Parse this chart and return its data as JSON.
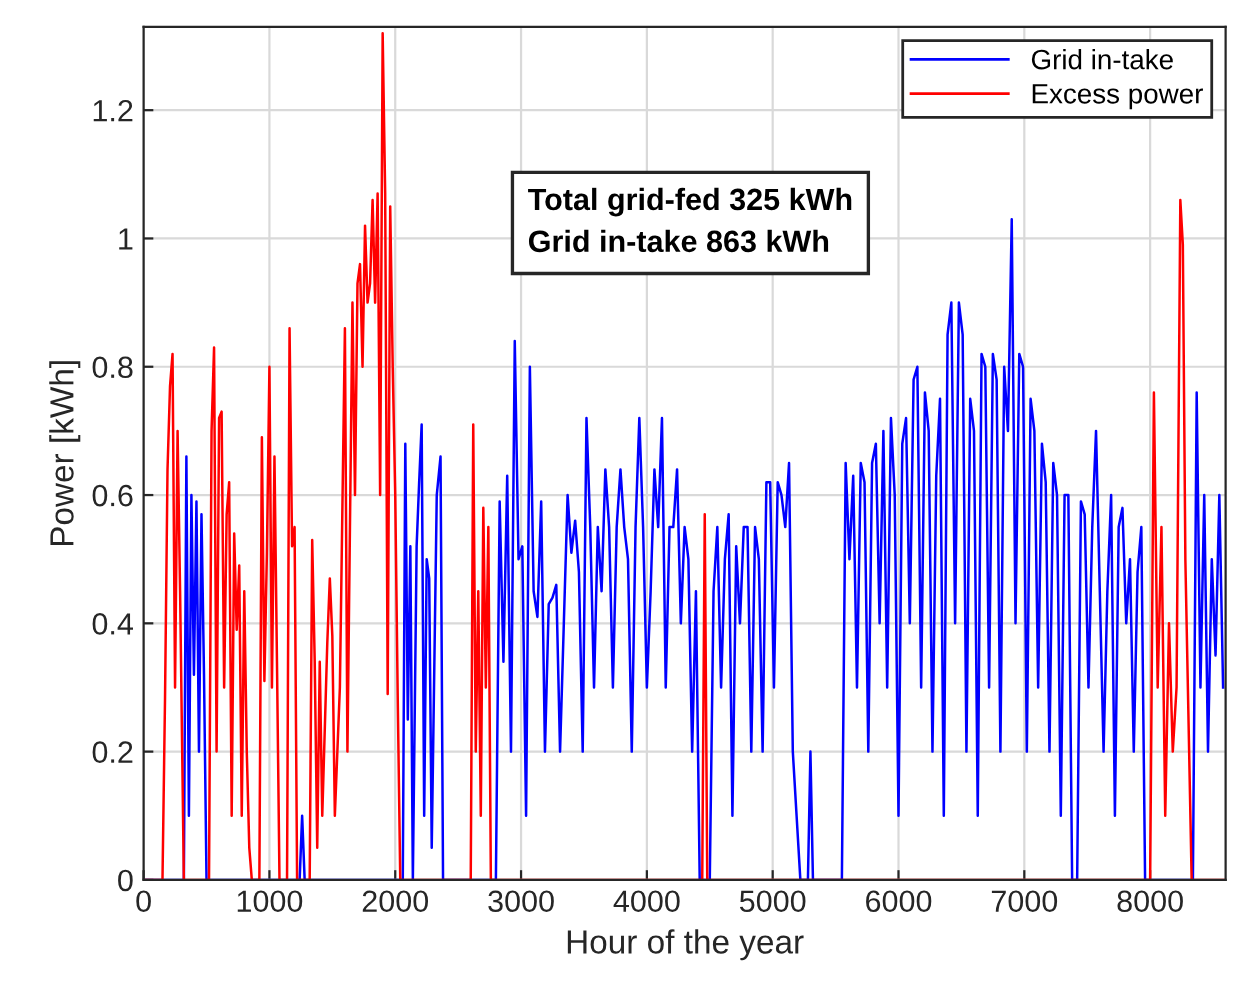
{
  "chart_data": {
    "type": "line",
    "xlabel": "Hour of the year",
    "ylabel": "Power [kWh]",
    "xlim": [
      0,
      8600
    ],
    "xticks": [
      0,
      1000,
      2000,
      3000,
      4000,
      5000,
      6000,
      7000,
      8000
    ],
    "ylim": [
      0,
      1.33
    ],
    "yticks": [
      0,
      0.2,
      0.4,
      0.6,
      0.8,
      1,
      1.2
    ],
    "grid": true,
    "legend": "top right",
    "marker": "none",
    "line_style": "solid",
    "annotations": [
      "Total grid-fed 325 kWh\nGrid in-take 863 kWh"
    ],
    "series": [
      {
        "name": "Grid in-take",
        "color": "#0000ff",
        "x": [
          0,
          320,
          340,
          360,
          380,
          400,
          420,
          440,
          460,
          480,
          500,
          1240,
          1260,
          1280,
          2060,
          2080,
          2100,
          2120,
          2140,
          2170,
          2190,
          2210,
          2230,
          2250,
          2270,
          2290,
          2330,
          2360,
          2380,
          2800,
          2830,
          2860,
          2890,
          2920,
          2950,
          2980,
          3010,
          3040,
          3070,
          3100,
          3130,
          3160,
          3190,
          3220,
          3250,
          3280,
          3310,
          3340,
          3370,
          3400,
          3430,
          3460,
          3490,
          3520,
          3550,
          3580,
          3610,
          3640,
          3670,
          3700,
          3730,
          3760,
          3790,
          3820,
          3850,
          3880,
          3910,
          3940,
          3970,
          4000,
          4030,
          4060,
          4090,
          4120,
          4150,
          4180,
          4210,
          4240,
          4270,
          4300,
          4330,
          4360,
          4390,
          4420,
          4500,
          4530,
          4560,
          4590,
          4620,
          4650,
          4680,
          4710,
          4740,
          4770,
          4800,
          4830,
          4860,
          4890,
          4920,
          4950,
          4980,
          5010,
          5040,
          5070,
          5100,
          5130,
          5160,
          5190,
          5220,
          5280,
          5300,
          5320,
          5550,
          5580,
          5610,
          5640,
          5670,
          5700,
          5730,
          5760,
          5790,
          5820,
          5850,
          5880,
          5910,
          5940,
          5970,
          6000,
          6030,
          6060,
          6090,
          6120,
          6150,
          6180,
          6210,
          6240,
          6270,
          6300,
          6330,
          6360,
          6390,
          6420,
          6450,
          6480,
          6510,
          6540,
          6570,
          6600,
          6630,
          6660,
          6690,
          6720,
          6750,
          6780,
          6810,
          6840,
          6870,
          6900,
          6930,
          6960,
          6990,
          7020,
          7050,
          7080,
          7110,
          7140,
          7170,
          7200,
          7230,
          7260,
          7290,
          7320,
          7350,
          7380,
          7420,
          7450,
          7480,
          7510,
          7540,
          7570,
          7600,
          7630,
          7660,
          7690,
          7720,
          7750,
          7780,
          7810,
          7840,
          7870,
          7900,
          7930,
          7960,
          8340,
          8370,
          8400,
          8430,
          8460,
          8490,
          8520,
          8550,
          8580
        ],
        "values": [
          0,
          0,
          0.66,
          0.1,
          0.6,
          0.32,
          0.59,
          0.2,
          0.57,
          0.32,
          0,
          0,
          0.1,
          0,
          0,
          0.68,
          0.25,
          0.52,
          0,
          0.52,
          0.62,
          0.71,
          0.1,
          0.5,
          0.47,
          0.05,
          0.6,
          0.66,
          0,
          0,
          0.59,
          0.34,
          0.63,
          0.2,
          0.84,
          0.5,
          0.52,
          0.1,
          0.8,
          0.45,
          0.41,
          0.59,
          0.2,
          0.43,
          0.44,
          0.46,
          0.2,
          0.4,
          0.6,
          0.51,
          0.56,
          0.48,
          0.2,
          0.72,
          0.55,
          0.3,
          0.55,
          0.45,
          0.64,
          0.55,
          0.3,
          0.55,
          0.64,
          0.55,
          0.5,
          0.2,
          0.55,
          0.72,
          0.55,
          0.3,
          0.45,
          0.64,
          0.55,
          0.72,
          0.3,
          0.55,
          0.55,
          0.64,
          0.4,
          0.55,
          0.5,
          0.2,
          0.45,
          0,
          0,
          0.45,
          0.55,
          0.3,
          0.5,
          0.57,
          0.1,
          0.52,
          0.4,
          0.55,
          0.55,
          0.2,
          0.55,
          0.5,
          0.2,
          0.62,
          0.62,
          0.3,
          0.62,
          0.6,
          0.55,
          0.65,
          0.2,
          0.1,
          0,
          0,
          0.2,
          0,
          0,
          0.65,
          0.5,
          0.63,
          0.3,
          0.65,
          0.62,
          0.2,
          0.65,
          0.68,
          0.4,
          0.7,
          0.3,
          0.72,
          0.6,
          0.1,
          0.68,
          0.72,
          0.4,
          0.78,
          0.8,
          0.3,
          0.76,
          0.7,
          0.2,
          0.63,
          0.75,
          0.1,
          0.85,
          0.9,
          0.4,
          0.9,
          0.85,
          0.2,
          0.75,
          0.7,
          0.1,
          0.82,
          0.8,
          0.3,
          0.82,
          0.78,
          0.2,
          0.8,
          0.7,
          1.03,
          0.4,
          0.82,
          0.8,
          0.2,
          0.75,
          0.7,
          0.3,
          0.68,
          0.62,
          0.2,
          0.65,
          0.6,
          0.1,
          0.6,
          0.6,
          0,
          0,
          0.59,
          0.57,
          0.3,
          0.55,
          0.7,
          0.45,
          0.2,
          0.45,
          0.6,
          0.1,
          0.55,
          0.58,
          0.4,
          0.5,
          0.2,
          0.48,
          0.55,
          0,
          0,
          0.76,
          0.3,
          0.6,
          0.2,
          0.5,
          0.35,
          0.6,
          0.3
        ]
      },
      {
        "name": "Excess power",
        "color": "#ff0000",
        "x": [
          0,
          150,
          170,
          190,
          210,
          230,
          250,
          270,
          290,
          320,
          520,
          540,
          560,
          580,
          600,
          620,
          640,
          660,
          680,
          700,
          720,
          740,
          760,
          780,
          800,
          820,
          840,
          860,
          920,
          940,
          960,
          980,
          1000,
          1020,
          1040,
          1060,
          1080,
          1140,
          1160,
          1180,
          1200,
          1220,
          1320,
          1340,
          1360,
          1380,
          1400,
          1420,
          1460,
          1480,
          1500,
          1520,
          1560,
          1600,
          1620,
          1660,
          1680,
          1700,
          1720,
          1740,
          1760,
          1780,
          1800,
          1820,
          1840,
          1860,
          1880,
          1900,
          1920,
          1940,
          1960,
          1980,
          2000,
          2020,
          2040,
          2600,
          2620,
          2640,
          2660,
          2680,
          2700,
          2720,
          2740,
          2760,
          4440,
          4460,
          4480,
          8000,
          8030,
          8060,
          8090,
          8120,
          8150,
          8180,
          8210,
          8240,
          8260,
          8280,
          8300,
          8330,
          8600
        ],
        "values": [
          0,
          0,
          0.28,
          0.64,
          0.77,
          0.82,
          0.3,
          0.7,
          0.45,
          0,
          0,
          0.7,
          0.83,
          0.2,
          0.72,
          0.73,
          0.3,
          0.57,
          0.62,
          0.1,
          0.54,
          0.39,
          0.49,
          0.1,
          0.45,
          0.2,
          0.05,
          0,
          0,
          0.69,
          0.31,
          0.51,
          0.8,
          0.3,
          0.66,
          0.34,
          0,
          0,
          0.86,
          0.52,
          0.55,
          0,
          0,
          0.53,
          0.34,
          0.05,
          0.34,
          0.1,
          0.37,
          0.47,
          0.38,
          0.1,
          0.3,
          0.86,
          0.2,
          0.9,
          0.6,
          0.93,
          0.96,
          0.8,
          1.02,
          0.9,
          0.93,
          1.06,
          0.9,
          1.07,
          0.6,
          1.32,
          1.07,
          0.29,
          1.05,
          0.8,
          0.6,
          0.28,
          0,
          0,
          0.71,
          0.2,
          0.45,
          0.1,
          0.58,
          0.3,
          0.55,
          0,
          0,
          0.57,
          0,
          0,
          0.76,
          0.3,
          0.55,
          0.1,
          0.4,
          0.2,
          0.3,
          1.06,
          0.99,
          0.5,
          0.3,
          0,
          0
        ]
      }
    ]
  }
}
